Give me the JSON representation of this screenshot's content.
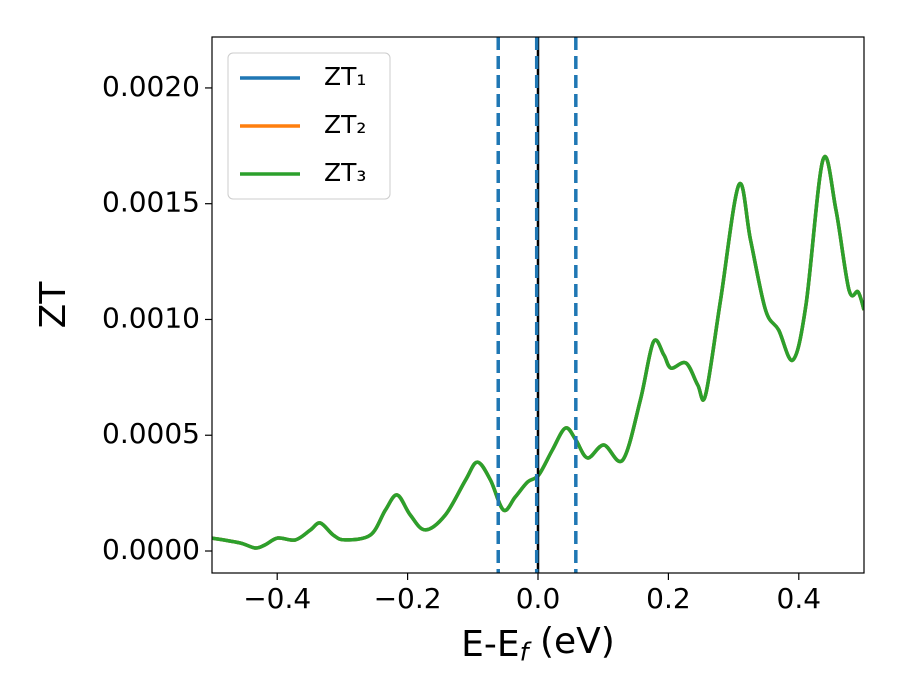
{
  "chart_data": {
    "type": "line",
    "xlabel": "E-E_f (eV)",
    "ylabel": "ZT",
    "x": [
      -0.5,
      -0.457,
      -0.434,
      -0.419,
      -0.399,
      -0.372,
      -0.349,
      -0.334,
      -0.314,
      -0.296,
      -0.257,
      -0.234,
      -0.216,
      -0.196,
      -0.173,
      -0.142,
      -0.111,
      -0.093,
      -0.073,
      -0.053,
      -0.035,
      -0.016,
      0.001,
      0.022,
      0.042,
      0.058,
      0.076,
      0.101,
      0.13,
      0.157,
      0.177,
      0.193,
      0.204,
      0.227,
      0.245,
      0.257,
      0.28,
      0.308,
      0.326,
      0.349,
      0.369,
      0.391,
      0.411,
      0.437,
      0.457,
      0.477,
      0.491,
      0.5
    ],
    "series": [
      {
        "name": "ZT₁",
        "color": "#1f77b4",
        "values": [
          5.6e-05,
          3.5e-05,
          1.3e-05,
          2.6e-05,
          5.6e-05,
          4.8e-05,
          9.1e-05,
          0.000121,
          6.9e-05,
          4.8e-05,
          6.9e-05,
          0.000177,
          0.000242,
          0.000156,
          9.1e-05,
          0.000156,
          0.000307,
          0.000384,
          0.000307,
          0.000177,
          0.000233,
          0.000298,
          0.000328,
          0.000436,
          0.000531,
          0.00048,
          0.000402,
          0.000458,
          0.000393,
          0.000652,
          0.000903,
          0.000847,
          0.00079,
          0.000812,
          0.000717,
          0.000674,
          0.001084,
          0.001581,
          0.001343,
          0.001041,
          0.000955,
          0.000825,
          0.001063,
          0.001689,
          0.001473,
          0.001127,
          0.001119,
          0.001041
        ]
      },
      {
        "name": "ZT₂",
        "color": "#ff7f0e",
        "values": [
          5.6e-05,
          3.5e-05,
          1.3e-05,
          2.6e-05,
          5.6e-05,
          4.8e-05,
          9.1e-05,
          0.000121,
          6.9e-05,
          4.8e-05,
          6.9e-05,
          0.000177,
          0.000242,
          0.000156,
          9.1e-05,
          0.000156,
          0.000307,
          0.000384,
          0.000307,
          0.000177,
          0.000233,
          0.000298,
          0.000328,
          0.000436,
          0.000531,
          0.00048,
          0.000402,
          0.000458,
          0.000393,
          0.000652,
          0.000903,
          0.000847,
          0.00079,
          0.000812,
          0.000717,
          0.000674,
          0.001084,
          0.001581,
          0.001343,
          0.001041,
          0.000955,
          0.000825,
          0.001063,
          0.001689,
          0.001473,
          0.001127,
          0.001119,
          0.001041
        ]
      },
      {
        "name": "ZT₃",
        "color": "#2ca02c",
        "values": [
          5.6e-05,
          3.5e-05,
          1.3e-05,
          2.6e-05,
          5.6e-05,
          4.8e-05,
          9.1e-05,
          0.000121,
          6.9e-05,
          4.8e-05,
          6.9e-05,
          0.000177,
          0.000242,
          0.000156,
          9.1e-05,
          0.000156,
          0.000307,
          0.000384,
          0.000307,
          0.000177,
          0.000233,
          0.000298,
          0.000328,
          0.000436,
          0.000531,
          0.00048,
          0.000402,
          0.000458,
          0.000393,
          0.000652,
          0.000903,
          0.000847,
          0.00079,
          0.000812,
          0.000717,
          0.000674,
          0.001084,
          0.001581,
          0.001343,
          0.001041,
          0.000955,
          0.000825,
          0.001063,
          0.001689,
          0.001473,
          0.001127,
          0.001119,
          0.001041
        ]
      }
    ],
    "vlines": [
      {
        "x": 0,
        "color": "#000000",
        "style": "solid"
      },
      {
        "x": -0.061,
        "color": "#1f77b4",
        "style": "dashed"
      },
      {
        "x": -0.002,
        "color": "#1f77b4",
        "style": "dashed"
      },
      {
        "x": 0.058,
        "color": "#1f77b4",
        "style": "dashed"
      }
    ],
    "xlim": [
      -0.5,
      0.5
    ],
    "xticks": [
      {
        "value": -0.4,
        "label": "−0.4"
      },
      {
        "value": -0.2,
        "label": "−0.2"
      },
      {
        "value": 0,
        "label": "0.0"
      },
      0.2,
      0.4
    ],
    "ylim": [
      -9.5e-05,
      0.00222
    ],
    "yticks": [
      {
        "value": 0,
        "label": "0.0000"
      },
      {
        "value": 0.0005,
        "label": "0.0005"
      },
      {
        "value": 0.001,
        "label": "0.0010"
      },
      {
        "value": 0.0015,
        "label": "0.0015"
      },
      {
        "value": 0.002,
        "label": "0.0020"
      }
    ],
    "grid": false,
    "legend": "upper left"
  }
}
